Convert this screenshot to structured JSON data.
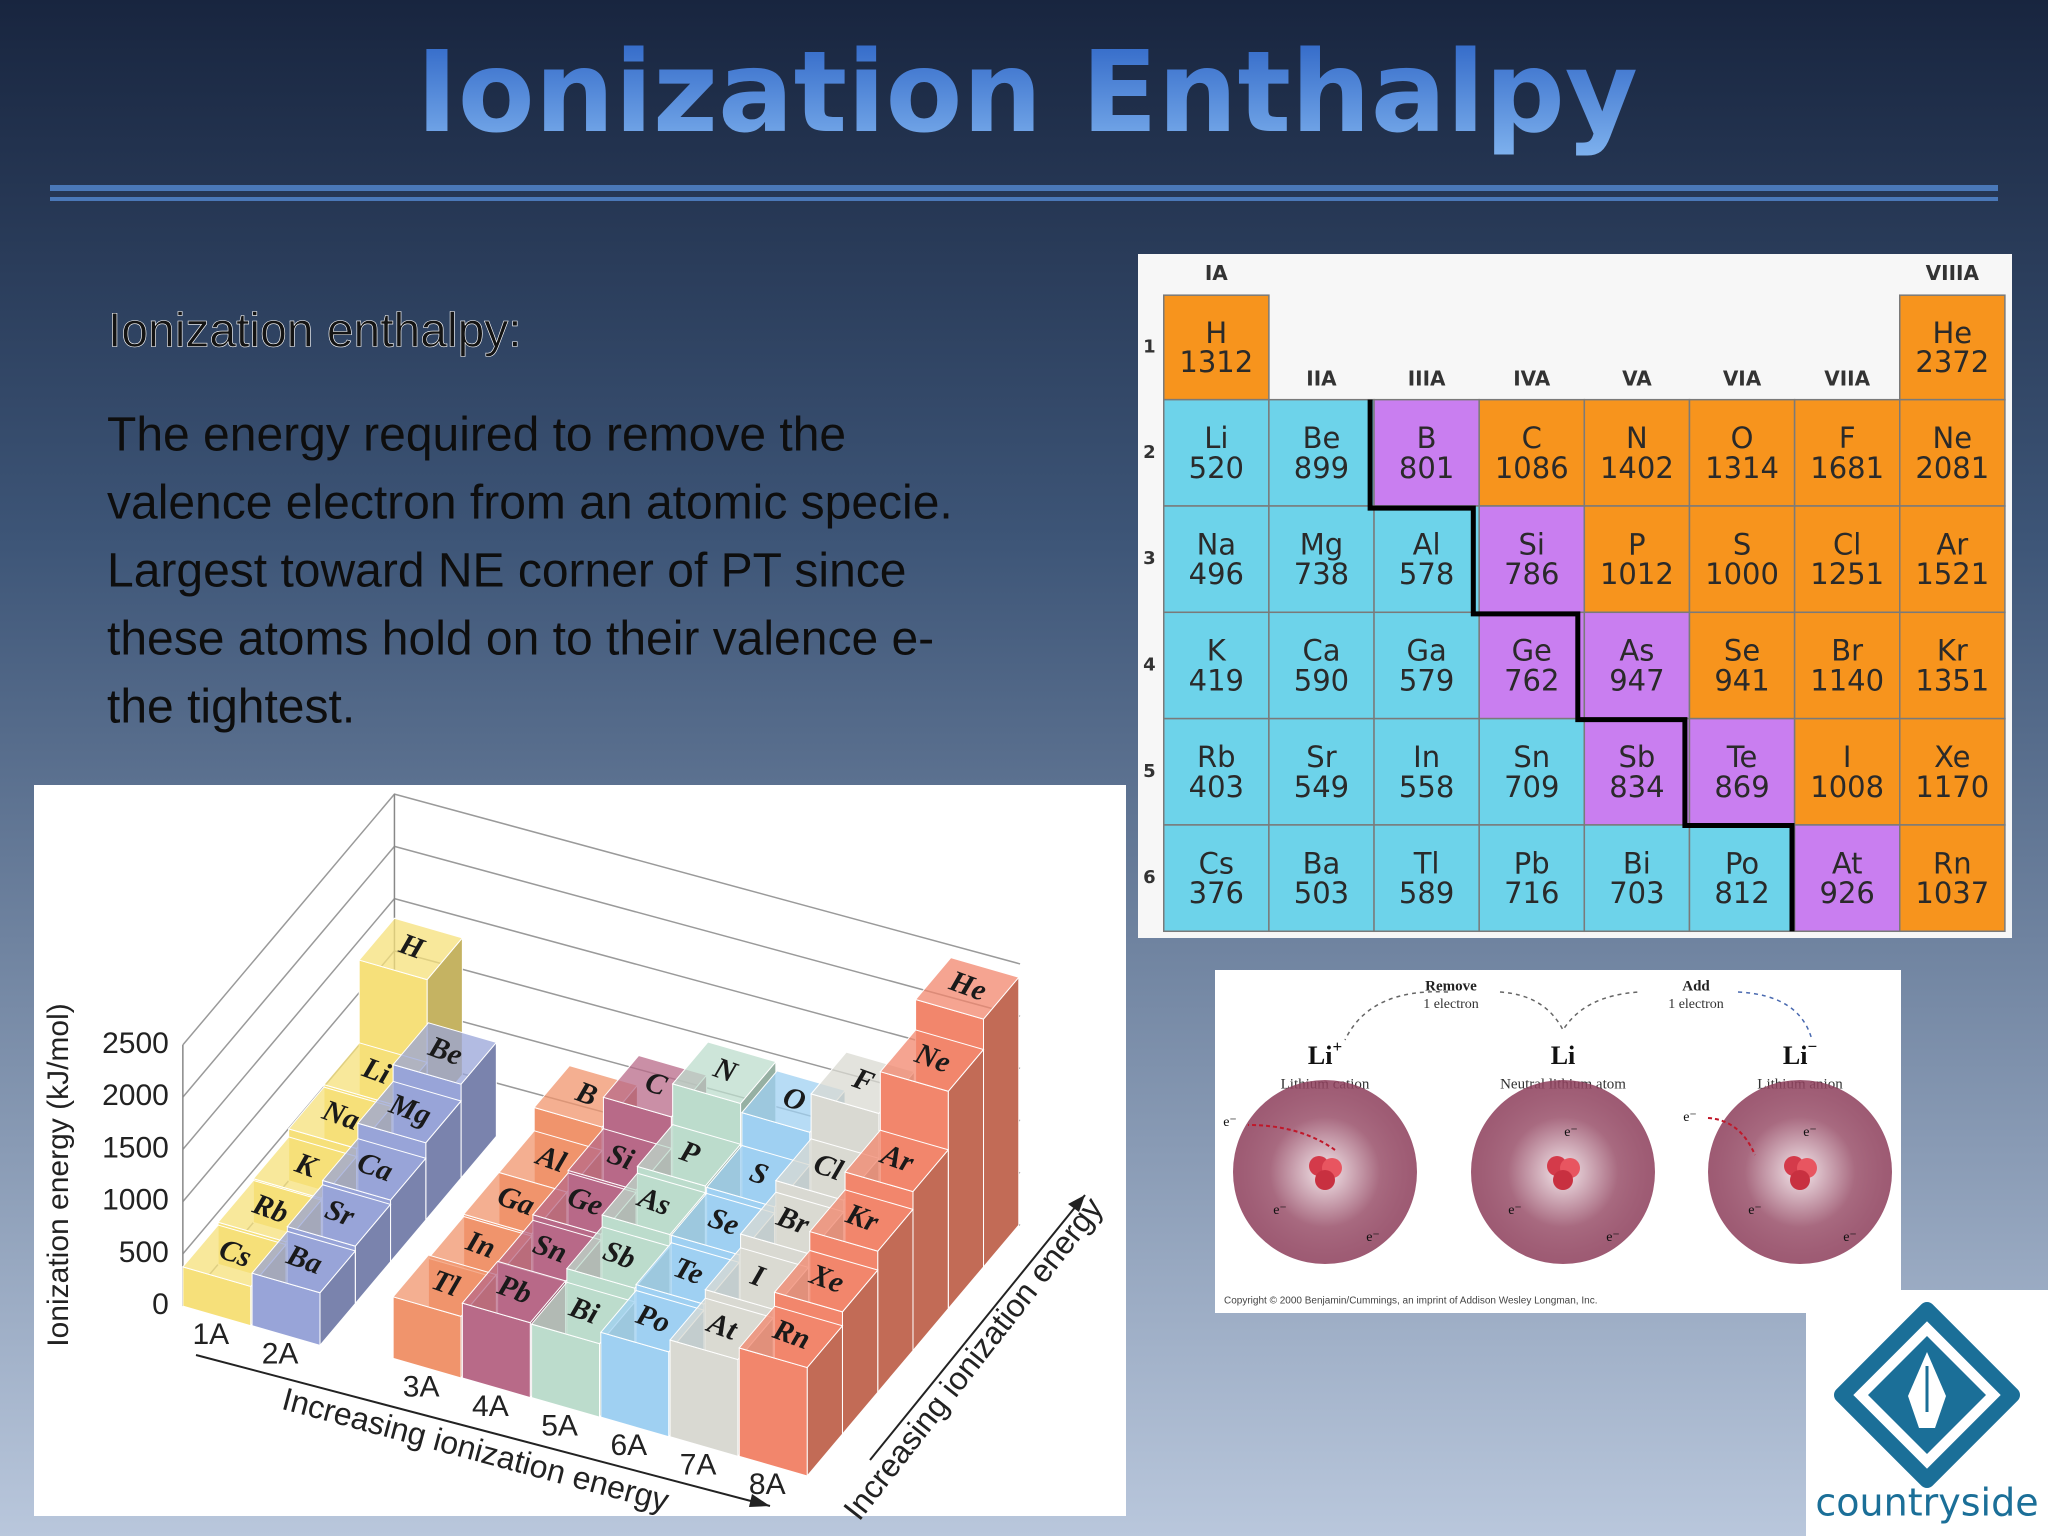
{
  "header": {
    "title": "Ionization Enthalpy"
  },
  "body": {
    "heading": "Ionization enthalpy:",
    "lines": [
      "The energy required to remove the",
      "valence electron from an atomic specie.",
      "Largest toward NE corner of PT since",
      "these atoms hold on to their valence e-",
      "the tightest."
    ]
  },
  "periodic_table": {
    "group_headers": [
      "IA",
      "IIA",
      "IIIA",
      "IVA",
      "VA",
      "VIA",
      "VIIA",
      "VIIIA"
    ],
    "periods": [
      1,
      2,
      3,
      4,
      5,
      6
    ],
    "rows": [
      [
        {
          "symbol": "H",
          "value": 1312,
          "color": "#f7941d"
        },
        null,
        null,
        null,
        null,
        null,
        null,
        {
          "symbol": "He",
          "value": 2372,
          "color": "#f7941d"
        }
      ],
      [
        {
          "symbol": "Li",
          "value": 520,
          "color": "#6dd3ea"
        },
        {
          "symbol": "Be",
          "value": 899,
          "color": "#6dd3ea"
        },
        {
          "symbol": "B",
          "value": 801,
          "color": "#c97ef0"
        },
        {
          "symbol": "C",
          "value": 1086,
          "color": "#f7941d"
        },
        {
          "symbol": "N",
          "value": 1402,
          "color": "#f7941d"
        },
        {
          "symbol": "O",
          "value": 1314,
          "color": "#f7941d"
        },
        {
          "symbol": "F",
          "value": 1681,
          "color": "#f7941d"
        },
        {
          "symbol": "Ne",
          "value": 2081,
          "color": "#f7941d"
        }
      ],
      [
        {
          "symbol": "Na",
          "value": 496,
          "color": "#6dd3ea"
        },
        {
          "symbol": "Mg",
          "value": 738,
          "color": "#6dd3ea"
        },
        {
          "symbol": "Al",
          "value": 578,
          "color": "#6dd3ea"
        },
        {
          "symbol": "Si",
          "value": 786,
          "color": "#c97ef0"
        },
        {
          "symbol": "P",
          "value": 1012,
          "color": "#f7941d"
        },
        {
          "symbol": "S",
          "value": 1000,
          "color": "#f7941d"
        },
        {
          "symbol": "Cl",
          "value": 1251,
          "color": "#f7941d"
        },
        {
          "symbol": "Ar",
          "value": 1521,
          "color": "#f7941d"
        }
      ],
      [
        {
          "symbol": "K",
          "value": 419,
          "color": "#6dd3ea"
        },
        {
          "symbol": "Ca",
          "value": 590,
          "color": "#6dd3ea"
        },
        {
          "symbol": "Ga",
          "value": 579,
          "color": "#6dd3ea"
        },
        {
          "symbol": "Ge",
          "value": 762,
          "color": "#c97ef0"
        },
        {
          "symbol": "As",
          "value": 947,
          "color": "#c97ef0"
        },
        {
          "symbol": "Se",
          "value": 941,
          "color": "#f7941d"
        },
        {
          "symbol": "Br",
          "value": 1140,
          "color": "#f7941d"
        },
        {
          "symbol": "Kr",
          "value": 1351,
          "color": "#f7941d"
        }
      ],
      [
        {
          "symbol": "Rb",
          "value": 403,
          "color": "#6dd3ea"
        },
        {
          "symbol": "Sr",
          "value": 549,
          "color": "#6dd3ea"
        },
        {
          "symbol": "In",
          "value": 558,
          "color": "#6dd3ea"
        },
        {
          "symbol": "Sn",
          "value": 709,
          "color": "#6dd3ea"
        },
        {
          "symbol": "Sb",
          "value": 834,
          "color": "#c97ef0"
        },
        {
          "symbol": "Te",
          "value": 869,
          "color": "#c97ef0"
        },
        {
          "symbol": "I",
          "value": 1008,
          "color": "#f7941d"
        },
        {
          "symbol": "Xe",
          "value": 1170,
          "color": "#f7941d"
        }
      ],
      [
        {
          "symbol": "Cs",
          "value": 376,
          "color": "#6dd3ea"
        },
        {
          "symbol": "Ba",
          "value": 503,
          "color": "#6dd3ea"
        },
        {
          "symbol": "Tl",
          "value": 589,
          "color": "#6dd3ea"
        },
        {
          "symbol": "Pb",
          "value": 716,
          "color": "#6dd3ea"
        },
        {
          "symbol": "Bi",
          "value": 703,
          "color": "#6dd3ea"
        },
        {
          "symbol": "Po",
          "value": 812,
          "color": "#6dd3ea"
        },
        {
          "symbol": "At",
          "value": 926,
          "color": "#c97ef0"
        },
        {
          "symbol": "Rn",
          "value": 1037,
          "color": "#f7941d"
        }
      ]
    ]
  },
  "ionization_chart": {
    "axis_label": "Ionization energy (kJ/mol)",
    "ylim": [
      0,
      2500
    ],
    "yticks": [
      0,
      500,
      1000,
      1500,
      2000,
      2500
    ],
    "groups": [
      "1A",
      "2A",
      "3A",
      "4A",
      "5A",
      "6A",
      "7A",
      "8A"
    ],
    "group_colors": [
      "#f6e07a",
      "#98a4d8",
      "#f0946c",
      "#b86a88",
      "#bcdccc",
      "#9fd0f2",
      "#d9d9d2",
      "#f2866c"
    ],
    "x_axis_label": "Increasing ionization energy",
    "depth_axis_label": "Increasing ionization energy"
  },
  "lithium_diagram": {
    "remove": "Remove",
    "remove_detail": "1 electron",
    "add": "Add",
    "add_detail": "1 electron",
    "species": [
      {
        "symbol": "Li",
        "charge": "+",
        "name": "Lithium cation"
      },
      {
        "symbol": "Li",
        "name": "Neutral lithium atom"
      },
      {
        "symbol": "Li",
        "charge": "−",
        "name": "Lithium anion"
      }
    ],
    "electron": "e⁻",
    "copyright": "Copyright © 2000 Benjamin/Cummings, an imprint of Addison Wesley Longman, Inc."
  },
  "logo": {
    "text": "countryside"
  }
}
